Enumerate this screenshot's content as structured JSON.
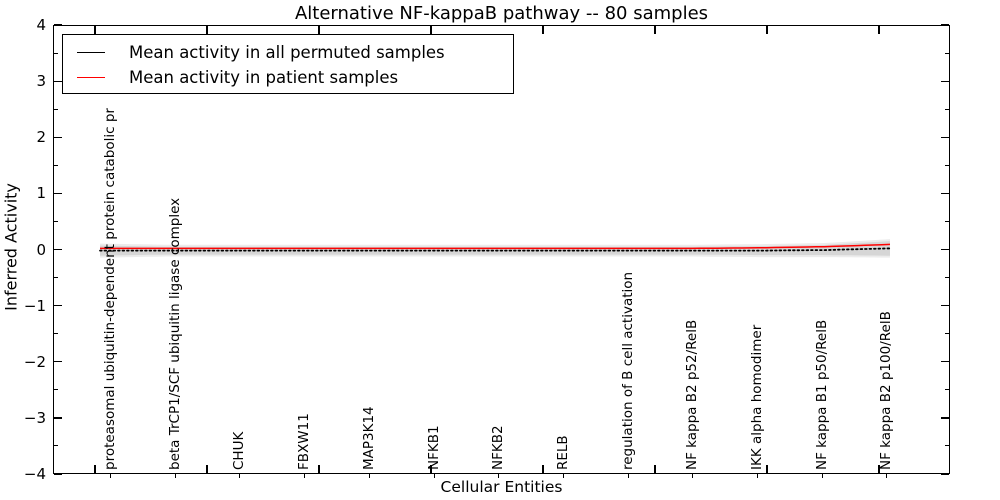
{
  "chart": {
    "title": "Alternative NF-kappaB pathway -- 80 samples",
    "xlabel": "Cellular Entities",
    "ylabel": "Inferred Activity",
    "legend_position": "upper left"
  },
  "chart_data": {
    "type": "line",
    "title": "Alternative NF-kappaB pathway -- 80 samples",
    "xlabel": "Cellular Entities",
    "ylabel": "Inferred Activity",
    "ylim": [
      -4,
      4
    ],
    "y_ticks": [
      4,
      3,
      2,
      1,
      0,
      -1,
      -2,
      -3,
      -4
    ],
    "y_tick_labels": [
      "4",
      "3",
      "2",
      "1",
      "0",
      "−1",
      "−2",
      "−3",
      "−4"
    ],
    "grid": false,
    "n_samples": 80,
    "categories": [
      "proteasomal ubiquitin-dependent protein catabolic pr",
      "beta TrCP1/SCF ubiquitin ligase complex",
      "CHUK",
      "FBXW11",
      "MAP3K14",
      "NFKB1",
      "NFKB2",
      "RELB",
      "regulation of B cell activation",
      "NF kappa B2 p52/RelB",
      "IKK alpha homodimer",
      "NF kappa B1 p50/RelB",
      "NF kappa B2 p100/RelB"
    ],
    "series": [
      {
        "name": "Mean activity in all permuted samples",
        "color": "#000000",
        "line_style": "dense-dotted",
        "values_at_categories": [
          -0.02,
          -0.02,
          -0.02,
          -0.02,
          -0.02,
          -0.02,
          -0.02,
          -0.02,
          -0.02,
          -0.02,
          -0.02,
          -0.01,
          0.02
        ]
      },
      {
        "name": "Mean activity in patient samples",
        "color": "#ff0000",
        "line_style": "solid",
        "values_at_categories": [
          0.02,
          0.02,
          0.02,
          0.02,
          0.02,
          0.02,
          0.02,
          0.02,
          0.02,
          0.02,
          0.03,
          0.05,
          0.09
        ]
      }
    ],
    "band": {
      "meaning": "spread of permuted sample activity around the mean",
      "color_inner": "#d6d6d6",
      "color_outer": "#ececec",
      "halfwidth_at_categories": [
        0.09,
        0.07,
        0.07,
        0.07,
        0.07,
        0.07,
        0.07,
        0.07,
        0.07,
        0.07,
        0.08,
        0.09,
        0.13
      ]
    }
  }
}
